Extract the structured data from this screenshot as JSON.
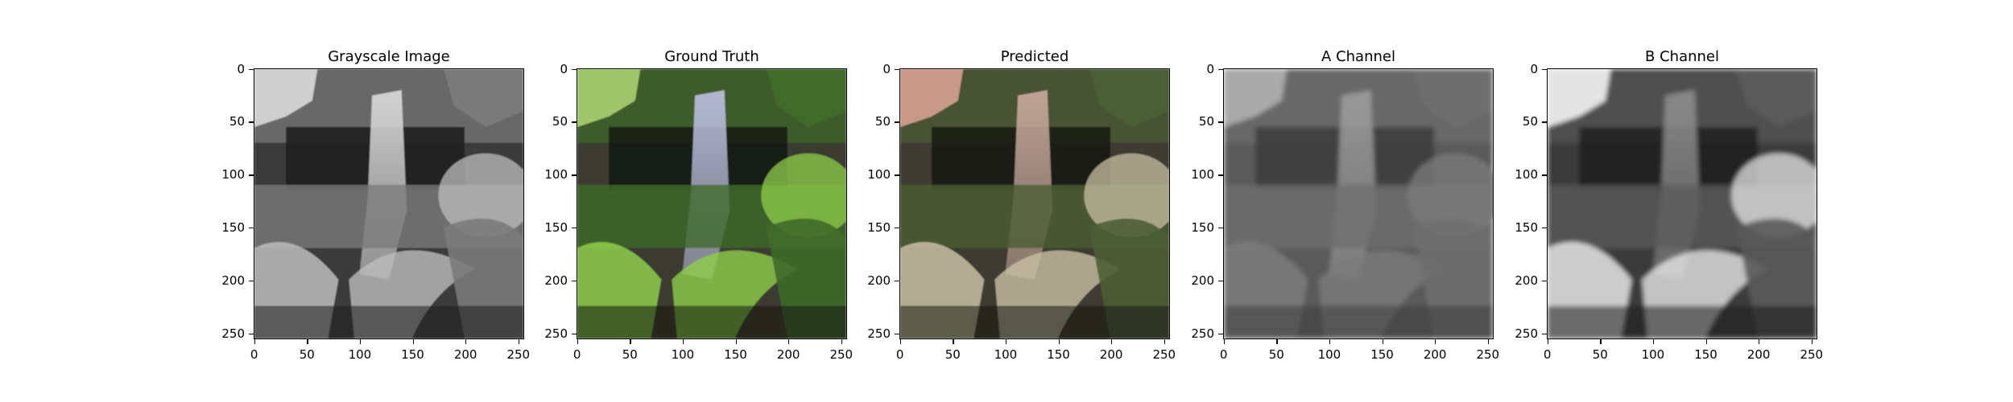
{
  "panels": [
    {
      "title": "Grayscale Image",
      "kind": "grayscale",
      "colors": {
        "sky": "#cfcfcf",
        "rock": "#3a3a3a",
        "water": "#d6d6d6",
        "foliage": "#7a7a7a",
        "fern": "#bdbdbd",
        "dark": "#1c1c1c"
      }
    },
    {
      "title": "Ground Truth",
      "kind": "color",
      "colors": {
        "sky": "#9fc46a",
        "rock": "#3a3a32",
        "water": "#b8bcd8",
        "foliage": "#3f6a2a",
        "fern": "#8fcf4a",
        "dark": "#141a10"
      }
    },
    {
      "title": "Predicted",
      "kind": "color-muted",
      "colors": {
        "sky": "#c89a86",
        "rock": "#3c3a30",
        "water": "#c4a69a",
        "foliage": "#4c5e34",
        "fern": "#c8c0a4",
        "dark": "#161a12"
      }
    },
    {
      "title": "A Channel",
      "kind": "channel-a",
      "colors": {
        "sky": "#a9a9a9",
        "rock": "#5a5a5a",
        "water": "#9a9a9a",
        "foliage": "#6e6e6e",
        "fern": "#7c7c7c",
        "dark": "#3c3c3c"
      }
    },
    {
      "title": "B Channel",
      "kind": "channel-b",
      "colors": {
        "sky": "#e4e4e4",
        "rock": "#3a3a3a",
        "water": "#8a8a8a",
        "foliage": "#5a5a5a",
        "fern": "#e6e6e6",
        "dark": "#1e1e1e"
      }
    }
  ],
  "axes": {
    "xticks": [
      "0",
      "50",
      "100",
      "150",
      "200",
      "250"
    ],
    "yticks": [
      "0",
      "50",
      "100",
      "150",
      "200",
      "250"
    ],
    "xlim": [
      0,
      256
    ],
    "ylim": [
      256,
      0
    ]
  }
}
